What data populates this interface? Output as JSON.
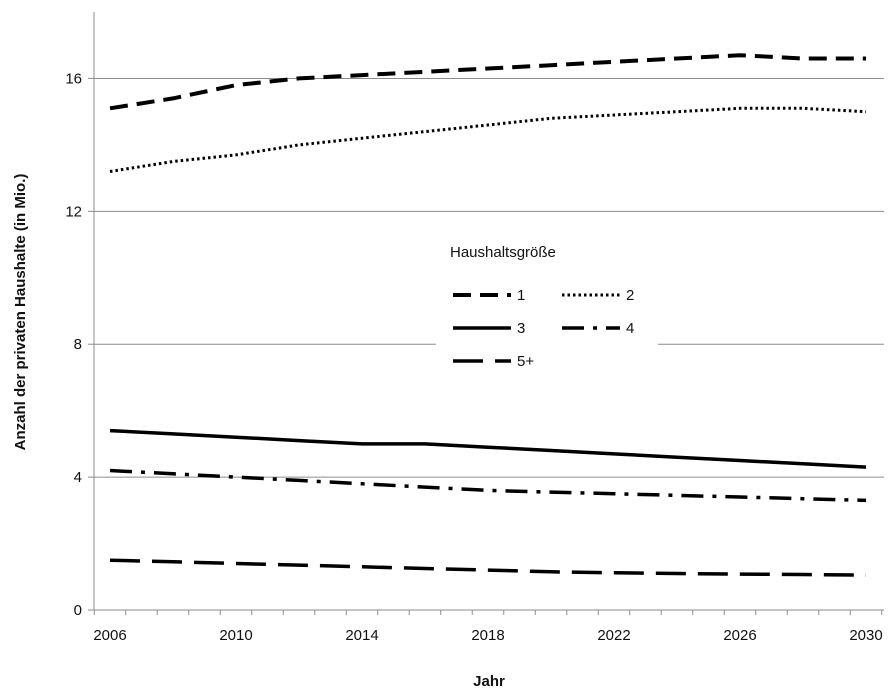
{
  "chart_data": {
    "type": "line",
    "xlabel": "Jahr",
    "ylabel": "Anzahl der privaten Haushalte  (in Mio.)",
    "xlim": [
      2006,
      2030
    ],
    "ylim": [
      0,
      18
    ],
    "xticks": [
      2006,
      2010,
      2014,
      2018,
      2022,
      2026,
      2030
    ],
    "yticks": [
      0,
      4,
      8,
      12,
      16
    ],
    "x_tick_labels": [
      "2006",
      "2010",
      "2014",
      "2018",
      "2022",
      "2026",
      "2030"
    ],
    "y_tick_labels": [
      "0",
      "4",
      "8",
      "12",
      "16"
    ],
    "gridlines": "horizontal",
    "legend": {
      "title": "Haushaltsgröße",
      "placement": "center",
      "entries": [
        "1",
        "2",
        "3",
        "4",
        "5+"
      ]
    },
    "x": [
      2006,
      2008,
      2010,
      2012,
      2014,
      2016,
      2018,
      2020,
      2022,
      2024,
      2026,
      2028,
      2030
    ],
    "series": [
      {
        "name": "1",
        "dash": "long-dash",
        "values": [
          15.1,
          15.4,
          15.8,
          16.0,
          16.1,
          16.2,
          16.3,
          16.4,
          16.5,
          16.6,
          16.7,
          16.6,
          16.6
        ]
      },
      {
        "name": "2",
        "dash": "dotted",
        "values": [
          13.2,
          13.5,
          13.7,
          14.0,
          14.2,
          14.4,
          14.6,
          14.8,
          14.9,
          15.0,
          15.1,
          15.1,
          15.0
        ]
      },
      {
        "name": "3",
        "dash": "solid",
        "values": [
          5.4,
          5.3,
          5.2,
          5.1,
          5.0,
          5.0,
          4.9,
          4.8,
          4.7,
          4.6,
          4.5,
          4.4,
          4.3
        ]
      },
      {
        "name": "4",
        "dash": "dash-dot",
        "values": [
          4.2,
          4.1,
          4.0,
          3.9,
          3.8,
          3.7,
          3.6,
          3.55,
          3.5,
          3.45,
          3.4,
          3.35,
          3.3
        ]
      },
      {
        "name": "5+",
        "dash": "long-dash-thin",
        "values": [
          1.5,
          1.45,
          1.4,
          1.35,
          1.3,
          1.25,
          1.2,
          1.15,
          1.12,
          1.1,
          1.08,
          1.07,
          1.05
        ]
      }
    ]
  }
}
